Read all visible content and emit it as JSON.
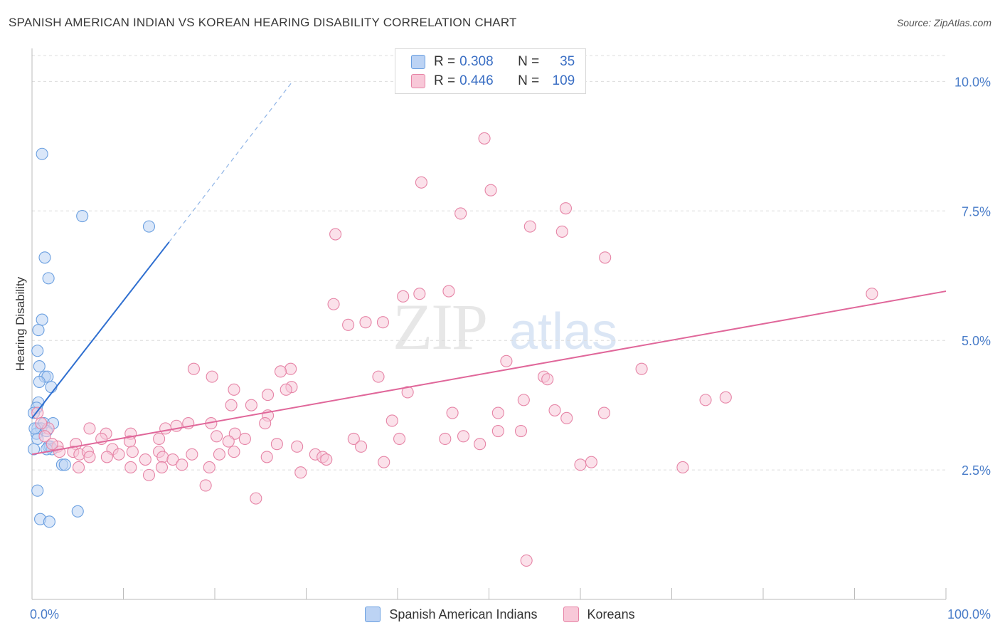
{
  "title": "SPANISH AMERICAN INDIAN VS KOREAN HEARING DISABILITY CORRELATION CHART",
  "source": "Source: ZipAtlas.com",
  "watermark": {
    "zip": "ZIP",
    "atlas": "atlas"
  },
  "legend": {
    "r_label": "R =",
    "n_label": "N =",
    "series": [
      {
        "name": "Spanish American Indians",
        "r": "0.308",
        "n": "35",
        "color": "#6a9fe0",
        "fill": "#bcd3f4"
      },
      {
        "name": "Koreans",
        "r": "0.446",
        "n": "109",
        "color": "#e684a6",
        "fill": "#f8c8d8"
      }
    ]
  },
  "chart_data": {
    "type": "scatter",
    "title": "SPANISH AMERICAN INDIAN VS KOREAN HEARING DISABILITY CORRELATION CHART",
    "xlabel": "",
    "ylabel": "Hearing Disability",
    "xlim": [
      0,
      100
    ],
    "ylim": [
      0,
      10.5
    ],
    "x_tick_labels": [
      "0.0%",
      "100.0%"
    ],
    "y_ticks": [
      2.5,
      5.0,
      7.5,
      10.0
    ],
    "y_tick_labels": [
      "2.5%",
      "5.0%",
      "7.5%",
      "10.0%"
    ],
    "series": [
      {
        "name": "Spanish American Indians",
        "color": "#6a9fe0",
        "fill": "#bcd3f4",
        "trendline": {
          "x": [
            0,
            15
          ],
          "y": [
            3.5,
            6.9
          ],
          "dash_extension_to": [
            28.5,
            10.0
          ]
        },
        "points": [
          [
            1.1,
            8.6
          ],
          [
            5.5,
            7.4
          ],
          [
            12.8,
            7.2
          ],
          [
            1.4,
            6.6
          ],
          [
            1.8,
            6.2
          ],
          [
            1.1,
            5.4
          ],
          [
            0.7,
            5.2
          ],
          [
            0.6,
            4.8
          ],
          [
            0.8,
            4.5
          ],
          [
            1.4,
            4.3
          ],
          [
            1.7,
            4.3
          ],
          [
            0.8,
            4.2
          ],
          [
            2.1,
            4.1
          ],
          [
            0.7,
            3.8
          ],
          [
            0.5,
            3.7
          ],
          [
            1.3,
            3.4
          ],
          [
            2.3,
            3.4
          ],
          [
            0.6,
            3.3
          ],
          [
            1.0,
            3.3
          ],
          [
            1.6,
            3.25
          ],
          [
            0.5,
            3.2
          ],
          [
            0.6,
            3.1
          ],
          [
            1.8,
            2.95
          ],
          [
            2.0,
            2.95
          ],
          [
            2.2,
            2.9
          ],
          [
            1.6,
            2.9
          ],
          [
            3.3,
            2.6
          ],
          [
            3.6,
            2.6
          ],
          [
            0.6,
            2.1
          ],
          [
            5.0,
            1.7
          ],
          [
            0.9,
            1.55
          ],
          [
            1.9,
            1.5
          ],
          [
            0.2,
            3.6
          ],
          [
            0.3,
            3.3
          ],
          [
            0.2,
            2.9
          ]
        ]
      },
      {
        "name": "Koreans",
        "color": "#e684a6",
        "fill": "#f8c8d8",
        "trendline": {
          "x": [
            0,
            100
          ],
          "y": [
            2.8,
            5.95
          ]
        },
        "points": [
          [
            49.5,
            8.9
          ],
          [
            42.6,
            8.05
          ],
          [
            50.2,
            7.9
          ],
          [
            46.9,
            7.45
          ],
          [
            58.4,
            7.55
          ],
          [
            54.5,
            7.2
          ],
          [
            58.0,
            7.1
          ],
          [
            33.2,
            7.05
          ],
          [
            62.7,
            6.6
          ],
          [
            91.9,
            5.9
          ],
          [
            45.6,
            5.95
          ],
          [
            40.6,
            5.85
          ],
          [
            42.4,
            5.9
          ],
          [
            33.0,
            5.7
          ],
          [
            36.5,
            5.35
          ],
          [
            38.4,
            5.35
          ],
          [
            34.6,
            5.3
          ],
          [
            51.9,
            4.6
          ],
          [
            28.3,
            4.45
          ],
          [
            17.7,
            4.45
          ],
          [
            19.7,
            4.3
          ],
          [
            27.2,
            4.4
          ],
          [
            37.9,
            4.3
          ],
          [
            56.0,
            4.3
          ],
          [
            56.4,
            4.25
          ],
          [
            66.7,
            4.45
          ],
          [
            28.4,
            4.1
          ],
          [
            27.8,
            4.05
          ],
          [
            22.1,
            4.05
          ],
          [
            25.8,
            3.95
          ],
          [
            41.1,
            4.0
          ],
          [
            53.8,
            3.85
          ],
          [
            73.7,
            3.85
          ],
          [
            75.9,
            3.9
          ],
          [
            21.8,
            3.75
          ],
          [
            24.0,
            3.75
          ],
          [
            46.0,
            3.6
          ],
          [
            51.0,
            3.6
          ],
          [
            57.2,
            3.65
          ],
          [
            62.6,
            3.6
          ],
          [
            25.8,
            3.55
          ],
          [
            58.5,
            3.5
          ],
          [
            39.4,
            3.45
          ],
          [
            17.1,
            3.4
          ],
          [
            19.6,
            3.4
          ],
          [
            25.5,
            3.4
          ],
          [
            15.8,
            3.35
          ],
          [
            14.6,
            3.3
          ],
          [
            6.3,
            3.3
          ],
          [
            8.1,
            3.2
          ],
          [
            10.8,
            3.2
          ],
          [
            20.2,
            3.15
          ],
          [
            13.9,
            3.1
          ],
          [
            22.2,
            3.2
          ],
          [
            23.3,
            3.1
          ],
          [
            35.2,
            3.1
          ],
          [
            40.2,
            3.1
          ],
          [
            45.2,
            3.1
          ],
          [
            47.2,
            3.15
          ],
          [
            49.0,
            3.0
          ],
          [
            53.5,
            3.25
          ],
          [
            51.0,
            3.25
          ],
          [
            4.8,
            3.0
          ],
          [
            7.6,
            3.1
          ],
          [
            10.7,
            3.05
          ],
          [
            21.5,
            3.05
          ],
          [
            26.8,
            3.0
          ],
          [
            36.0,
            2.95
          ],
          [
            2.8,
            2.95
          ],
          [
            8.8,
            2.9
          ],
          [
            11.0,
            2.85
          ],
          [
            13.9,
            2.85
          ],
          [
            17.5,
            2.8
          ],
          [
            3.0,
            2.85
          ],
          [
            4.5,
            2.85
          ],
          [
            5.2,
            2.8
          ],
          [
            6.1,
            2.85
          ],
          [
            8.2,
            2.75
          ],
          [
            9.5,
            2.8
          ],
          [
            12.4,
            2.7
          ],
          [
            14.3,
            2.75
          ],
          [
            20.5,
            2.8
          ],
          [
            22.1,
            2.85
          ],
          [
            29.0,
            2.95
          ],
          [
            31.0,
            2.8
          ],
          [
            25.7,
            2.75
          ],
          [
            31.8,
            2.75
          ],
          [
            32.2,
            2.7
          ],
          [
            6.3,
            2.75
          ],
          [
            15.4,
            2.7
          ],
          [
            16.4,
            2.6
          ],
          [
            5.1,
            2.55
          ],
          [
            10.8,
            2.55
          ],
          [
            14.2,
            2.55
          ],
          [
            19.4,
            2.55
          ],
          [
            38.5,
            2.65
          ],
          [
            60.0,
            2.6
          ],
          [
            61.2,
            2.65
          ],
          [
            71.2,
            2.55
          ],
          [
            12.8,
            2.4
          ],
          [
            29.4,
            2.45
          ],
          [
            19.0,
            2.2
          ],
          [
            24.5,
            1.95
          ],
          [
            54.1,
            0.75
          ],
          [
            0.6,
            3.6
          ],
          [
            1.8,
            3.3
          ],
          [
            1.4,
            3.15
          ],
          [
            2.2,
            3.0
          ],
          [
            1.0,
            3.4
          ]
        ]
      }
    ]
  }
}
